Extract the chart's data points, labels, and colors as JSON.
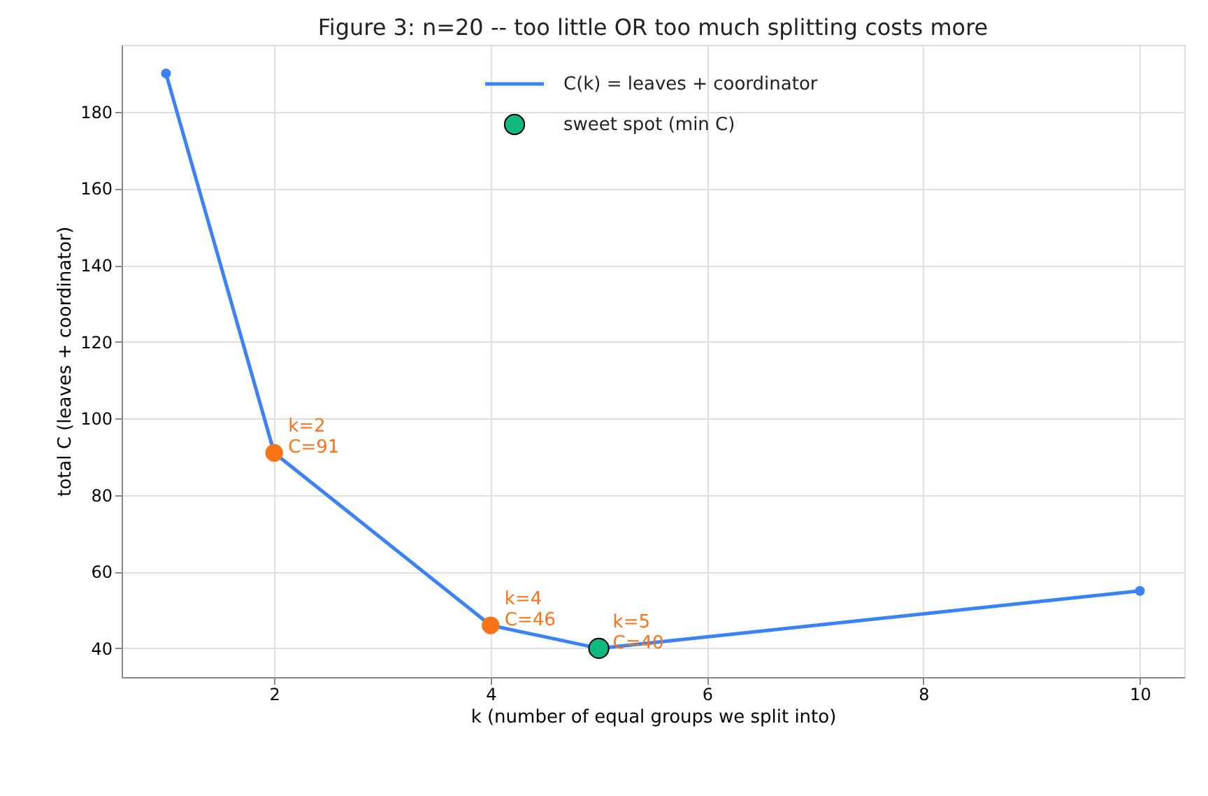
{
  "chart_data": {
    "type": "line",
    "title": "Figure 3: n=20 -- too little OR too much splitting costs more",
    "xlabel": "k  (number of equal groups we split into)",
    "ylabel": "total C  (leaves + coordinator)",
    "series": [
      {
        "name": "C(k) = leaves + coordinator",
        "color": "#3b82f6",
        "x": [
          1,
          2,
          4,
          5,
          10
        ],
        "values": [
          190,
          91,
          46,
          40,
          55
        ]
      },
      {
        "type": "scatter",
        "color": "#f97316",
        "x": [
          2,
          4
        ],
        "values": [
          91,
          46
        ]
      },
      {
        "name": "sweet spot (min C)",
        "type": "scatter",
        "color": "#10b981",
        "x": [
          5
        ],
        "values": [
          40
        ]
      }
    ],
    "annotations": [
      {
        "text": "k=2\nC=91",
        "x": 2,
        "y": 91
      },
      {
        "text": "k=4\nC=46",
        "x": 4,
        "y": 46
      },
      {
        "text": "k=5\nC=40",
        "x": 5,
        "y": 40
      }
    ],
    "xlim": [
      0.59,
      10.41
    ],
    "ylim": [
      32.5,
      197.5
    ],
    "xticks": [
      {
        "value": 2,
        "label": "2"
      },
      {
        "value": 4,
        "label": "4"
      },
      {
        "value": 6,
        "label": "6"
      },
      {
        "value": 8,
        "label": "8"
      },
      {
        "value": 10,
        "label": "10"
      }
    ],
    "yticks": [
      40,
      60,
      80,
      100,
      120,
      140,
      160,
      180
    ],
    "grid": true,
    "legend": "top",
    "marker": "circle",
    "line_style": "solid"
  }
}
